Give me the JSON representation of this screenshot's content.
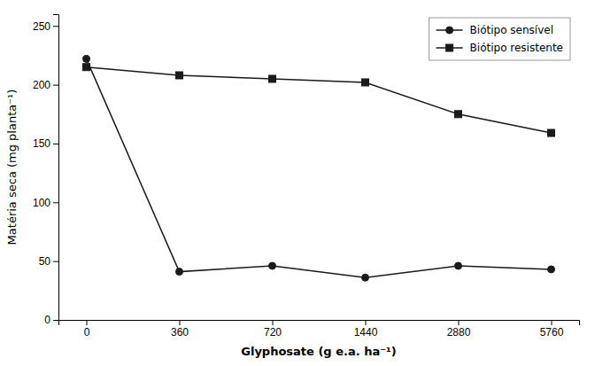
{
  "chart_data": {
    "type": "line",
    "xlabel": "Glyphosate (g e.a. ha⁻¹)",
    "ylabel": "Matéria seca (mg planta⁻¹)",
    "categories": [
      "0",
      "360",
      "720",
      "1440",
      "2880",
      "5760"
    ],
    "series": [
      {
        "name": "Biótipo sensível",
        "color": "#1a1a1a",
        "marker": "circle",
        "values": [
          222,
          41,
          46,
          36,
          46,
          43
        ]
      },
      {
        "name": "Biótipo resistente",
        "color": "#1a1a1a",
        "marker": "square",
        "values": [
          215,
          208,
          205,
          202,
          175,
          159
        ]
      }
    ],
    "ylim": [
      0,
      260
    ],
    "yticks": [
      0,
      50,
      100,
      150,
      200,
      250
    ],
    "legend": "upper right",
    "grid": false
  }
}
